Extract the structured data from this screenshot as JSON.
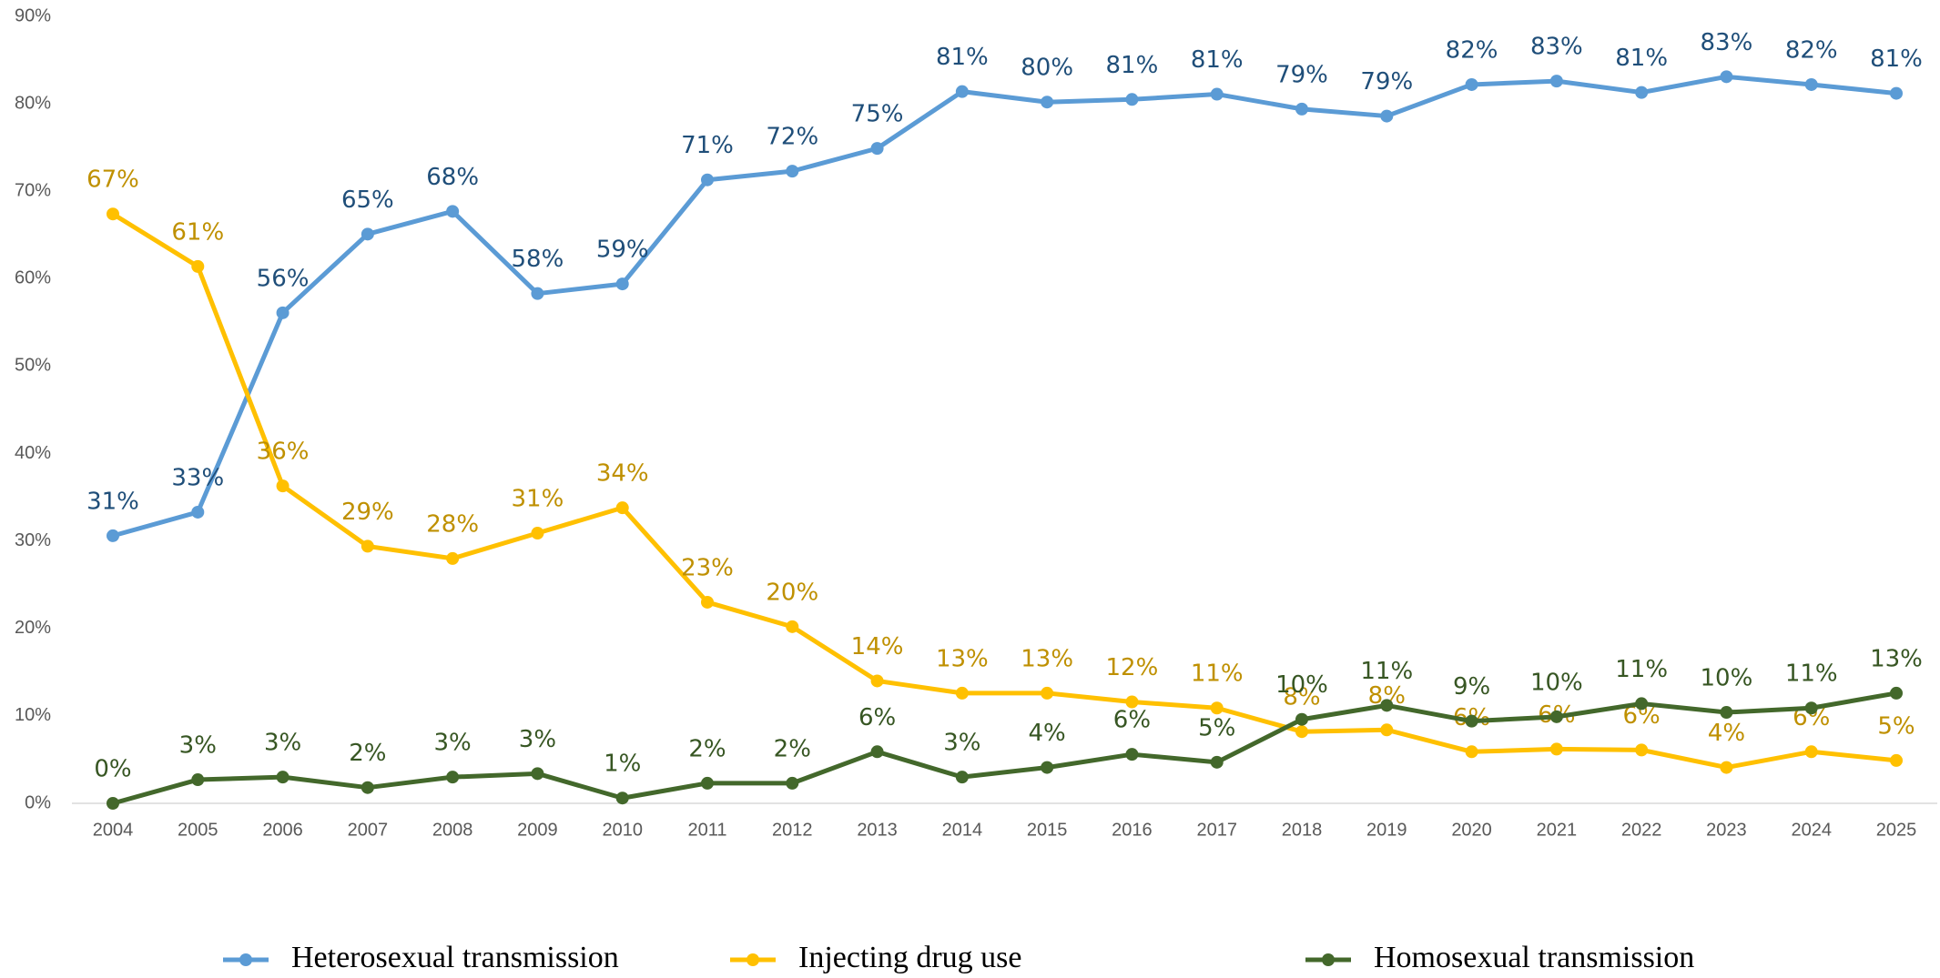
{
  "chart_data": {
    "type": "line",
    "categories": [
      "2004",
      "2005",
      "2006",
      "2007",
      "2008",
      "2009",
      "2010",
      "2011",
      "2012",
      "2013",
      "2014",
      "2015",
      "2016",
      "2017",
      "2018",
      "2019",
      "2020",
      "2021",
      "2022",
      "2023",
      "2024",
      "2025"
    ],
    "ylim": [
      0,
      90
    ],
    "yticks": [
      {
        "value": 0,
        "label": "0%"
      },
      {
        "value": 10,
        "label": "10%"
      },
      {
        "value": 20,
        "label": "20%"
      },
      {
        "value": 30,
        "label": "30%"
      },
      {
        "value": 40,
        "label": "40%"
      },
      {
        "value": 50,
        "label": "50%"
      },
      {
        "value": 60,
        "label": "60%"
      },
      {
        "value": 70,
        "label": "70%"
      },
      {
        "value": 80,
        "label": "80%"
      },
      {
        "value": 90,
        "label": "90%"
      }
    ],
    "grid": false,
    "legend": "bottom",
    "series": [
      {
        "name": "Heterosexual transmission",
        "color": "#5b9bd5",
        "label_color": "#1f4e79",
        "values": [
          30.6,
          33.3,
          56.1,
          65.1,
          67.7,
          58.3,
          59.4,
          71.3,
          72.3,
          74.9,
          81.4,
          80.2,
          80.5,
          81.1,
          79.4,
          78.6,
          82.2,
          82.6,
          81.3,
          83.1,
          82.2,
          81.2
        ],
        "value_labels": [
          "31%",
          "33%",
          "56%",
          "65%",
          "68%",
          "58%",
          "59%",
          "71%",
          "72%",
          "75%",
          "81%",
          "80%",
          "81%",
          "81%",
          "79%",
          "79%",
          "82%",
          "83%",
          "81%",
          "83%",
          "82%",
          "81%"
        ]
      },
      {
        "name": "Injecting drug use",
        "color": "#ffc000",
        "label_color": "#bf9000",
        "values": [
          67.4,
          61.4,
          36.3,
          29.4,
          28.0,
          30.9,
          33.8,
          23.0,
          20.2,
          14.0,
          12.6,
          12.6,
          11.6,
          10.9,
          8.2,
          8.4,
          5.9,
          6.2,
          6.1,
          4.1,
          5.9,
          4.9
        ],
        "value_labels": [
          "67%",
          "61%",
          "36%",
          "29%",
          "28%",
          "31%",
          "34%",
          "23%",
          "20%",
          "14%",
          "13%",
          "13%",
          "12%",
          "11%",
          "8%",
          "8%",
          "6%",
          "6%",
          "6%",
          "4%",
          "6%",
          "5%"
        ]
      },
      {
        "name": "Homosexual transmission",
        "color": "#43682b",
        "label_color": "#375623",
        "values": [
          0,
          2.7,
          3.0,
          1.8,
          3.0,
          3.4,
          0.6,
          2.3,
          2.3,
          5.9,
          3.0,
          4.1,
          5.6,
          4.7,
          9.6,
          11.2,
          9.4,
          9.9,
          11.4,
          10.4,
          10.9,
          12.6
        ],
        "value_labels": [
          "0%",
          "3%",
          "3%",
          "2%",
          "3%",
          "3%",
          "1%",
          "2%",
          "2%",
          "6%",
          "3%",
          "4%",
          "6%",
          "5%",
          "10%",
          "11%",
          "9%",
          "10%",
          "11%",
          "10%",
          "11%",
          "13%"
        ]
      }
    ]
  }
}
